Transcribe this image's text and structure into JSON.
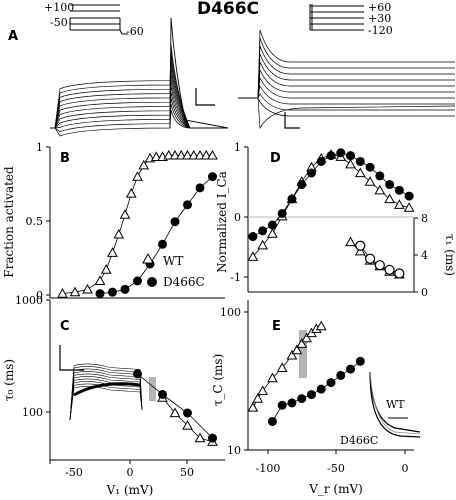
{
  "figure_title": "D466C",
  "panel_letters": {
    "A": "A",
    "B": "B",
    "C": "C",
    "D": "D",
    "E": "E"
  },
  "protocols": {
    "left": {
      "levels": [
        "+100",
        "-50",
        "-60"
      ]
    },
    "right": {
      "levels": [
        "+60",
        "+30",
        "-120"
      ]
    }
  },
  "colors": {
    "data": "#000000",
    "shade": "#b4b4b4",
    "zero_line": "#bbbbbb"
  },
  "chart_data": [
    {
      "id": "B",
      "type": "scatter",
      "xlabel": "",
      "ylabel": "Fraction activated",
      "xlim": [
        -70,
        70
      ],
      "ylim": [
        0,
        1.05
      ],
      "yticks": [
        "0",
        "0.5",
        "1"
      ],
      "legend": {
        "position": "bottom-right",
        "entries": [
          "WT",
          "D466C"
        ]
      },
      "series": [
        {
          "name": "WT",
          "marker": "open-triangle",
          "x": [
            -60,
            -50,
            -40,
            -30,
            -25,
            -20,
            -15,
            -10,
            -5,
            0,
            5,
            10,
            15,
            20,
            25,
            30,
            35,
            40,
            45,
            50,
            55,
            60
          ],
          "y": [
            0.01,
            0.02,
            0.04,
            0.1,
            0.18,
            0.3,
            0.43,
            0.57,
            0.72,
            0.84,
            0.92,
            0.97,
            0.98,
            0.98,
            0.99,
            0.99,
            0.99,
            0.99,
            0.99,
            0.99,
            0.99,
            0.99
          ]
        },
        {
          "name": "D466C",
          "marker": "filled-circle",
          "x": [
            -30,
            -20,
            -10,
            0,
            10,
            20,
            30,
            40,
            50,
            60
          ],
          "y": [
            0.01,
            0.02,
            0.04,
            0.1,
            0.22,
            0.36,
            0.52,
            0.64,
            0.76,
            0.84
          ]
        }
      ]
    },
    {
      "id": "C",
      "type": "scatter",
      "yscale": "log",
      "xlabel": "V₁ (mV)",
      "ylabel": "τ₀ (ms)",
      "xlim": [
        -70,
        70
      ],
      "ylim": [
        60,
        1000
      ],
      "xticks": [
        "-50",
        "0",
        "50"
      ],
      "yticks": [
        "100",
        "1000"
      ],
      "series": [
        {
          "name": "WT",
          "marker": "open-triangle",
          "x": [
            20,
            30,
            40,
            50,
            60
          ],
          "y": [
            160,
            120,
            95,
            75,
            70
          ]
        },
        {
          "name": "D466C",
          "marker": "filled-circle",
          "x": [
            0,
            20,
            40,
            60
          ],
          "y": [
            250,
            170,
            120,
            75
          ]
        }
      ]
    },
    {
      "id": "D",
      "type": "scatter",
      "xlabel": "",
      "ylabel": "Normalized I_Ca",
      "xlim": [
        -125,
        45
      ],
      "ylim": [
        -1.15,
        1.1
      ],
      "yticks": [
        "-1",
        "0",
        "1"
      ],
      "series": [
        {
          "name": "WT",
          "marker": "open-triangle",
          "x": [
            -120,
            -110,
            -100,
            -90,
            -80,
            -70,
            -60,
            -50,
            -40,
            -30,
            -20,
            -10,
            0,
            10,
            20,
            30,
            40
          ],
          "y": [
            -0.8,
            -0.6,
            -0.4,
            -0.1,
            0.2,
            0.5,
            0.75,
            0.9,
            0.97,
            0.93,
            0.8,
            0.65,
            0.5,
            0.35,
            0.2,
            0.1,
            0.05
          ]
        },
        {
          "name": "D466C",
          "marker": "filled-circle",
          "x": [
            -120,
            -110,
            -100,
            -90,
            -80,
            -70,
            -60,
            -50,
            -40,
            -30,
            -20,
            -10,
            0,
            10,
            20,
            30,
            40
          ],
          "y": [
            -0.45,
            -0.35,
            -0.25,
            -0.05,
            0.2,
            0.45,
            0.65,
            0.85,
            0.95,
            1.0,
            0.95,
            0.85,
            0.75,
            0.6,
            0.45,
            0.35,
            0.25
          ]
        }
      ]
    },
    {
      "id": "D-inset",
      "type": "scatter",
      "xlabel": "",
      "ylabel": "τ₁ (ms)",
      "xlim": [
        -125,
        45
      ],
      "ylim": [
        0,
        8
      ],
      "yticks": [
        "0",
        "4",
        "8"
      ],
      "series": [
        {
          "name": "WT",
          "marker": "open-triangle",
          "x": [
            -20,
            -10,
            0,
            10,
            20,
            30
          ],
          "y": [
            5.4,
            4.4,
            3.4,
            2.8,
            2.2,
            1.9
          ]
        },
        {
          "name": "D466C",
          "marker": "open-circle",
          "x": [
            -10,
            0,
            10,
            20,
            30
          ],
          "y": [
            5.0,
            3.6,
            2.9,
            2.4,
            2.0
          ]
        }
      ]
    },
    {
      "id": "E",
      "type": "scatter",
      "yscale": "log",
      "xlabel": "V_r (mV)",
      "ylabel": "τ_C (ms)",
      "xlim": [
        -125,
        45
      ],
      "ylim": [
        10,
        130
      ],
      "xticks": [
        "-100",
        "-50",
        "0"
      ],
      "yticks": [
        "10",
        "100"
      ],
      "series": [
        {
          "name": "WT",
          "marker": "open-triangle",
          "x": [
            -120,
            -115,
            -110,
            -100,
            -90,
            -80,
            -75,
            -70,
            -65,
            -60,
            -55,
            -50
          ],
          "y": [
            22,
            26,
            30,
            38,
            46,
            58,
            64,
            72,
            80,
            88,
            95,
            100
          ]
        },
        {
          "name": "D466C",
          "marker": "filled-circle",
          "x": [
            -100,
            -90,
            -80,
            -70,
            -60,
            -50,
            -40,
            -30,
            -20,
            -10
          ],
          "y": [
            17,
            23,
            24,
            26,
            28,
            31,
            35,
            40,
            45,
            52
          ]
        }
      ]
    }
  ],
  "inset_E": {
    "labels": {
      "wt": "WT",
      "mut": "D466C"
    }
  }
}
